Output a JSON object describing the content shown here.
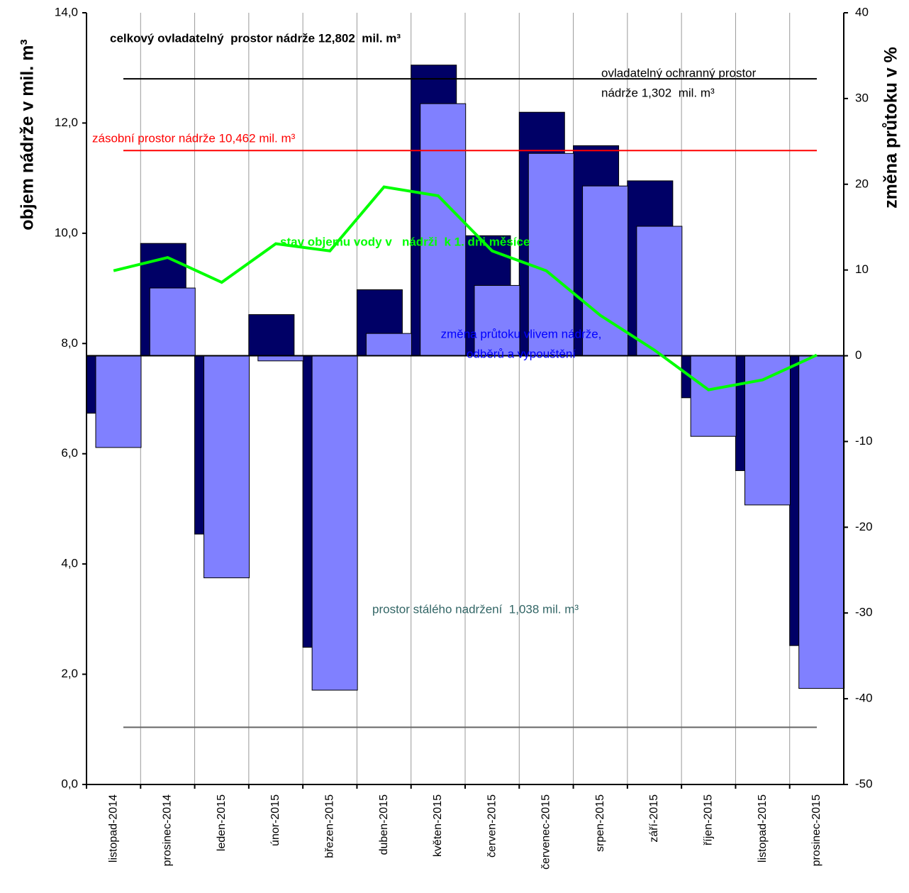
{
  "chart_data": {
    "type": "bar",
    "y_label": "objem nádrže v mil. m³",
    "y2_label": "změna průtoku v %",
    "categories": [
      "listopad-2014",
      "prosinec-2014",
      "leden-2015",
      "únor-2015",
      "březen-2015",
      "duben-2015",
      "květen-2015",
      "červen-2015",
      "červenec-2015",
      "srpen-2015",
      "září-2015",
      "říjen-2015",
      "listopad-2015",
      "prosinec-2015"
    ],
    "series": [
      {
        "type": "bar",
        "axis": "y2",
        "color": "#000066",
        "values": [
          -6.7,
          13.1,
          -20.8,
          4.8,
          -34.0,
          7.7,
          33.9,
          14.0,
          28.4,
          24.5,
          20.4,
          -4.9,
          -13.4,
          -33.8
        ]
      },
      {
        "type": "bar",
        "axis": "y2",
        "color": "#8080ff",
        "values": [
          -10.7,
          7.9,
          -25.9,
          -0.6,
          -39.0,
          2.6,
          29.4,
          8.2,
          23.6,
          19.8,
          15.1,
          -9.4,
          -17.4,
          -38.8
        ]
      },
      {
        "type": "line",
        "color": "#00ff00",
        "values": [
          9.32,
          9.56,
          9.11,
          9.81,
          9.68,
          10.84,
          10.68,
          9.68,
          9.32,
          8.51,
          7.88,
          7.16,
          7.34,
          7.79
        ]
      }
    ],
    "ylim": [
      0,
      14
    ],
    "yticks": [
      {
        "value": 0,
        "label": "0,0"
      },
      {
        "value": 2,
        "label": "2,0"
      },
      {
        "value": 4,
        "label": "4,0"
      },
      {
        "value": 6,
        "label": "6,0"
      },
      {
        "value": 8,
        "label": "8,0"
      },
      {
        "value": 10,
        "label": "10,0"
      },
      {
        "value": 12,
        "label": "12,0"
      },
      {
        "value": 14,
        "label": "14,0"
      }
    ],
    "y2lim": [
      -50,
      40
    ],
    "y2ticks": [
      -50,
      -40,
      -30,
      -20,
      -10,
      0,
      10,
      20,
      30,
      40
    ],
    "reference_lines": [
      {
        "value": 12.802,
        "color": "#000000"
      },
      {
        "value": 11.5,
        "color": "#ff0000"
      },
      {
        "value": 1.038,
        "color": "#666666"
      }
    ],
    "annotations": [
      {
        "text": "celkový ovladatelný  prostor nádrže 12,802  mil. m³",
        "color": "#000000"
      },
      {
        "text": "ovladatelný ochranný prostor",
        "color": "#000000"
      },
      {
        "text": "nádrže 1,302  mil. m³",
        "color": "#000000"
      },
      {
        "text": "zásobní prostor nádrže 10,462 mil. m³",
        "color": "#ff0000"
      },
      {
        "text": "stav objemu vody v   nádrži  k 1. dni měsíce",
        "color": "#00ff00"
      },
      {
        "text": "změna průtoku vlivem nádrže,",
        "color": "#0000ff"
      },
      {
        "text": "odběrů a vypouštění",
        "color": "#0000ff"
      },
      {
        "text": "prostor stálého nadržení  1,038 mil. m³",
        "color": "#336666"
      }
    ]
  }
}
